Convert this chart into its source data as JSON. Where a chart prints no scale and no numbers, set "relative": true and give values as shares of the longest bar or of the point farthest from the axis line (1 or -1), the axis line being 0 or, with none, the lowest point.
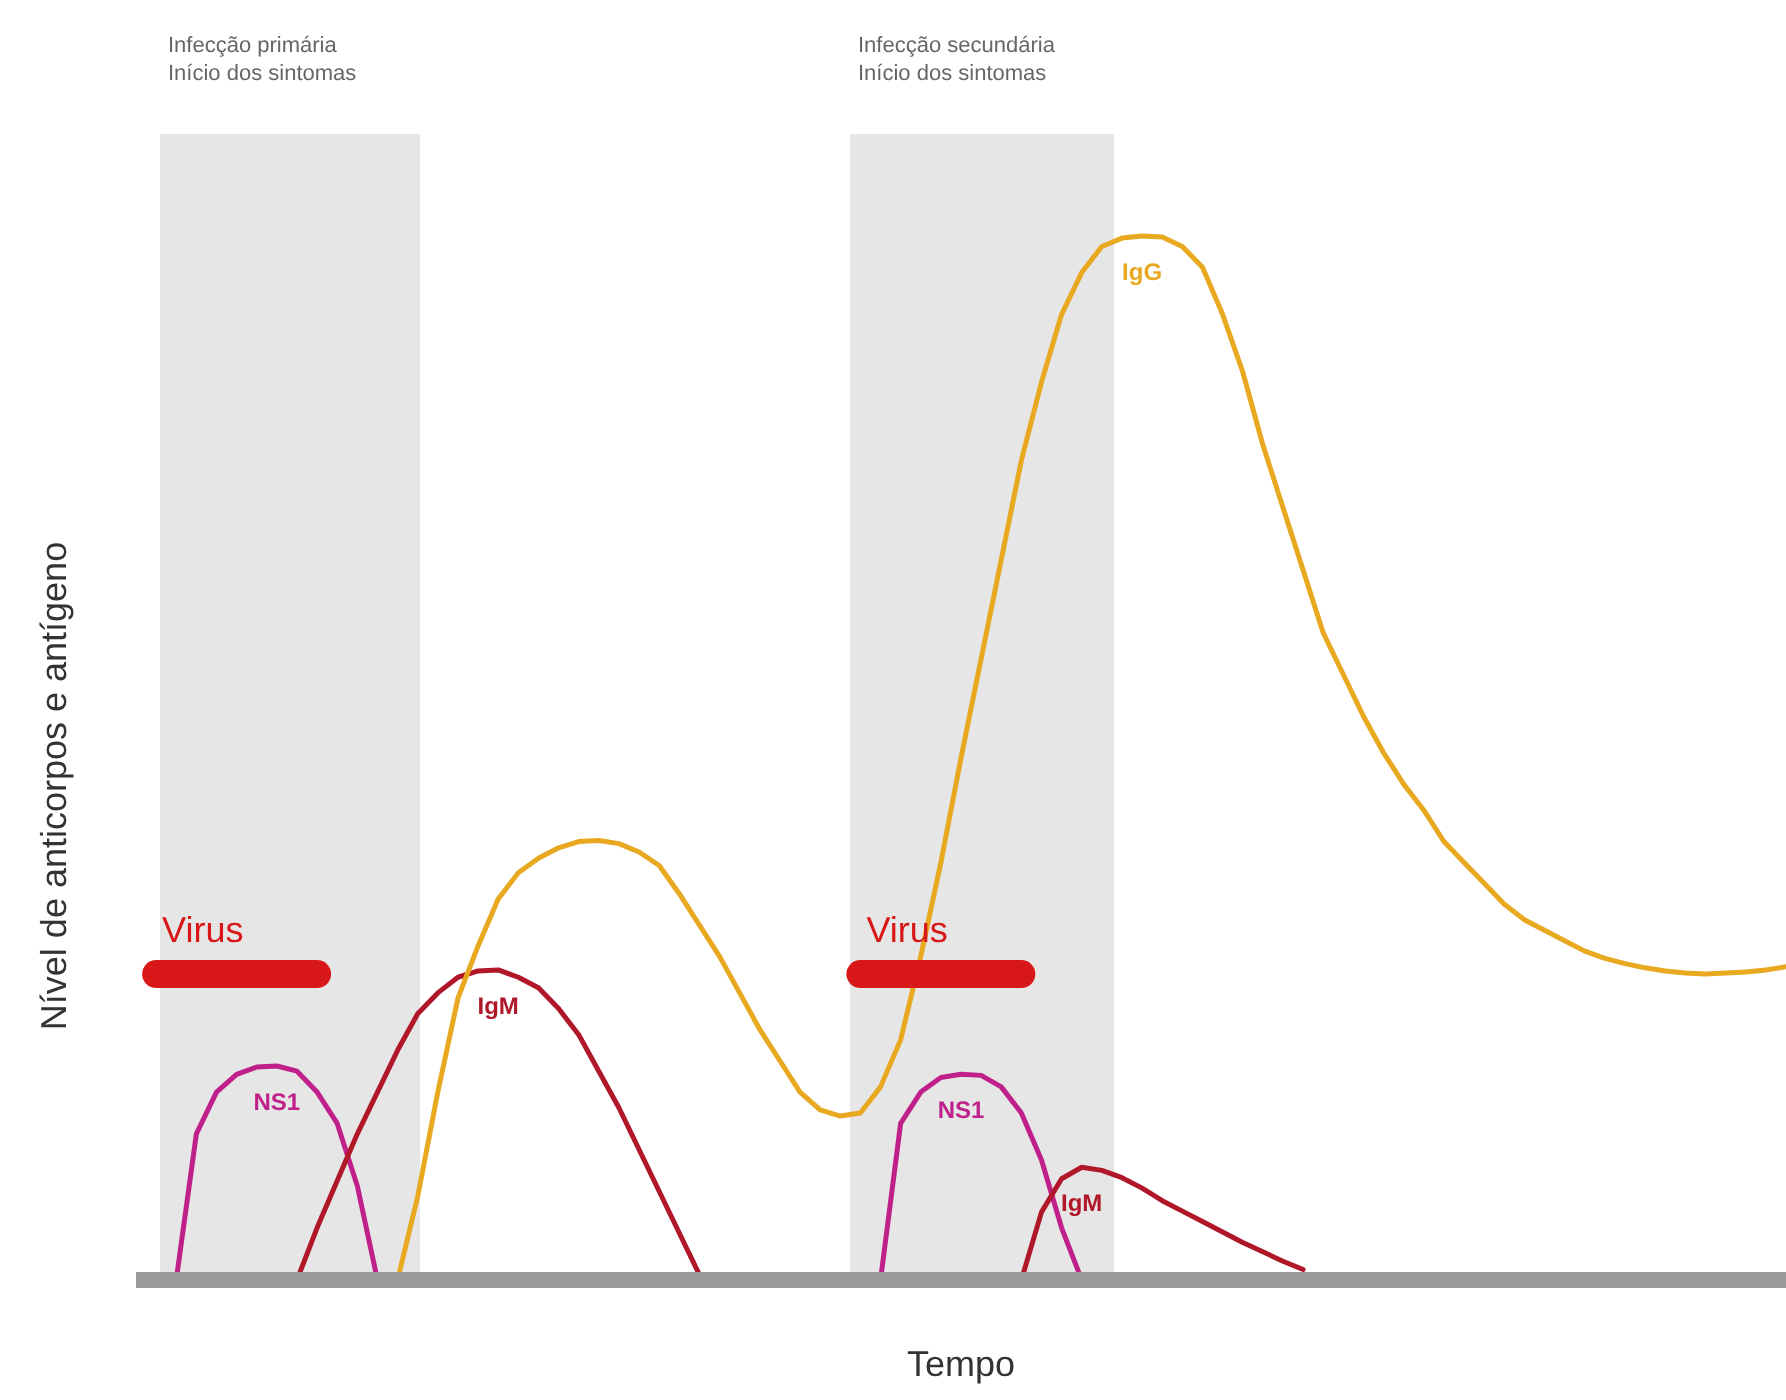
{
  "chart_data": {
    "type": "line",
    "relative": true,
    "xlabel": "Tempo",
    "ylabel": "Nível de anticorpos e antígeno",
    "legend": false,
    "grid": false,
    "marker": "none",
    "line_style": "solid",
    "annotations": [
      "Infecção primária\nInício dos sintomas",
      "Infecção secundária\nInício dos sintomas"
    ],
    "categories": [
      null,
      null,
      null,
      null,
      null,
      null,
      null,
      null,
      null,
      null,
      null,
      null,
      null,
      null,
      null,
      null,
      null,
      null,
      null,
      null,
      null,
      null,
      null,
      null,
      null,
      null,
      null,
      null,
      null,
      null,
      null,
      null,
      null,
      null,
      null,
      null,
      null,
      null,
      null,
      null,
      null,
      null,
      null,
      null,
      null,
      null,
      null,
      null,
      null,
      null,
      null,
      null,
      null,
      null,
      null,
      null,
      null,
      null,
      null,
      null,
      null,
      null,
      null,
      null,
      null,
      null,
      null,
      null,
      null,
      null,
      null,
      null,
      null,
      null,
      null,
      null,
      null,
      null,
      null,
      null,
      null,
      null,
      null
    ],
    "series": [
      {
        "name": "Virus",
        "color": "#d81818",
        "values": [
          null,
          0.293,
          0.293,
          0.293,
          0.293,
          0.293,
          0.293,
          0.293,
          0.293,
          0.293,
          null,
          null,
          null,
          null,
          null,
          null,
          null,
          null,
          null,
          null,
          null,
          null,
          null,
          null,
          null,
          null,
          null,
          null,
          null,
          null,
          null,
          null,
          null,
          null,
          null,
          null,
          null,
          null,
          null,
          null,
          null,
          null,
          null,
          null,
          null,
          null,
          null,
          null,
          null,
          null,
          null,
          null,
          null,
          null,
          null,
          null,
          null,
          null,
          null,
          null,
          null,
          null,
          null,
          null,
          null,
          null,
          null,
          null,
          null,
          null,
          null,
          null,
          null,
          null,
          null,
          null,
          null,
          null,
          null,
          null,
          null,
          null,
          null
        ]
      },
      {
        "name": "NS1",
        "color": "#c0208a",
        "values": [
          null,
          null,
          0,
          0.14,
          0.18,
          0.197,
          0.204,
          0.205,
          0.2,
          0.18,
          0.15,
          0.09,
          0,
          null,
          null,
          null,
          null,
          null,
          null,
          null,
          null,
          null,
          null,
          null,
          null,
          null,
          null,
          null,
          null,
          null,
          null,
          null,
          null,
          null,
          null,
          null,
          null,
          null,
          null,
          null,
          null,
          null,
          null,
          null,
          null,
          null,
          null,
          null,
          null,
          null,
          null,
          null,
          null,
          null,
          null,
          null,
          null,
          null,
          null,
          null,
          null,
          null,
          null,
          null,
          null,
          null,
          null,
          null,
          null,
          null,
          null,
          null,
          null,
          null,
          null,
          null,
          null,
          null,
          null,
          null,
          null,
          null,
          null
        ]
      },
      {
        "name": "IgM",
        "color": "#b0182a",
        "values": [
          null,
          null,
          null,
          null,
          null,
          null,
          null,
          null,
          0,
          0.05,
          0.095,
          0.14,
          0.18,
          0.22,
          0.255,
          0.275,
          0.29,
          0.296,
          0.297,
          0.29,
          0.28,
          0.26,
          0.235,
          0.2,
          0.165,
          0.125,
          0.085,
          0.045,
          0.005,
          null,
          null,
          null,
          null,
          null,
          null,
          null,
          null,
          null,
          null,
          null,
          null,
          null,
          null,
          null,
          null,
          null,
          null,
          null,
          null,
          null,
          null,
          null,
          null,
          null,
          null,
          null,
          null,
          null,
          null,
          null,
          null,
          null,
          null,
          null,
          null,
          null,
          null,
          null,
          null,
          null,
          null,
          null,
          null,
          null,
          null,
          null,
          null,
          null,
          null,
          null,
          null,
          null,
          null
        ]
      },
      {
        "name": "IgG",
        "color": "#e8a820",
        "values": [
          null,
          null,
          null,
          null,
          null,
          null,
          null,
          null,
          null,
          null,
          null,
          null,
          null,
          0,
          0.08,
          0.18,
          0.27,
          0.32,
          0.365,
          0.39,
          0.404,
          0.414,
          0.42,
          0.421,
          0.418,
          0.41,
          0.397,
          0.37,
          0.34,
          0.31,
          0.275,
          0.24,
          0.21,
          0.18,
          0.163,
          0.157,
          0.16,
          0.185,
          0.23,
          0.31,
          0.4,
          0.5,
          0.595,
          0.69,
          0.785,
          0.86,
          0.925,
          0.965,
          0.99,
          0.998,
          1.0,
          0.999,
          0.99,
          0.97,
          0.925,
          0.87,
          0.8,
          0.74,
          0.68,
          0.62,
          0.58,
          0.54,
          0.505,
          0.475,
          0.45,
          0.42,
          0.4,
          0.38,
          0.36,
          0.345,
          0.335,
          0.325,
          0.315,
          0.308,
          0.303,
          0.299,
          0.296,
          0.294,
          0.293,
          0.294,
          0.295,
          0.297,
          0.3
        ]
      },
      {
        "name": "Virus",
        "color": "#d81818",
        "values": [
          null,
          null,
          null,
          null,
          null,
          null,
          null,
          null,
          null,
          null,
          null,
          null,
          null,
          null,
          null,
          null,
          null,
          null,
          null,
          null,
          null,
          null,
          null,
          null,
          null,
          null,
          null,
          null,
          null,
          null,
          null,
          null,
          null,
          null,
          null,
          null,
          0.293,
          0.293,
          0.293,
          0.293,
          0.293,
          0.293,
          0.293,
          0.293,
          0.293,
          null,
          null,
          null,
          null,
          null,
          null,
          null,
          null,
          null,
          null,
          null,
          null,
          null,
          null,
          null,
          null,
          null,
          null,
          null,
          null,
          null,
          null,
          null,
          null,
          null,
          null,
          null,
          null,
          null,
          null,
          null,
          null,
          null,
          null,
          null,
          null,
          null,
          null
        ]
      },
      {
        "name": "NS1",
        "color": "#c0208a",
        "values": [
          null,
          null,
          null,
          null,
          null,
          null,
          null,
          null,
          null,
          null,
          null,
          null,
          null,
          null,
          null,
          null,
          null,
          null,
          null,
          null,
          null,
          null,
          null,
          null,
          null,
          null,
          null,
          null,
          null,
          null,
          null,
          null,
          null,
          null,
          null,
          null,
          null,
          0,
          0.15,
          0.18,
          0.194,
          0.197,
          0.196,
          0.185,
          0.16,
          0.115,
          0.05,
          0,
          null,
          null,
          null,
          null,
          null,
          null,
          null,
          null,
          null,
          null,
          null,
          null,
          null,
          null,
          null,
          null,
          null,
          null,
          null,
          null,
          null,
          null,
          null,
          null,
          null,
          null,
          null,
          null,
          null,
          null,
          null,
          null,
          null,
          null,
          null
        ]
      },
      {
        "name": "IgM",
        "color": "#b0182a",
        "values": [
          null,
          null,
          null,
          null,
          null,
          null,
          null,
          null,
          null,
          null,
          null,
          null,
          null,
          null,
          null,
          null,
          null,
          null,
          null,
          null,
          null,
          null,
          null,
          null,
          null,
          null,
          null,
          null,
          null,
          null,
          null,
          null,
          null,
          null,
          null,
          null,
          null,
          null,
          null,
          null,
          null,
          null,
          null,
          null,
          0,
          0.065,
          0.097,
          0.108,
          0.105,
          0.098,
          0.088,
          0.076,
          0.066,
          0.056,
          0.046,
          0.036,
          0.027,
          0.018,
          0.01,
          null,
          null,
          null,
          null,
          null,
          null,
          null,
          null,
          null,
          null,
          null,
          null,
          null,
          null,
          null,
          null,
          null,
          null,
          null,
          null,
          null,
          null,
          null,
          null
        ]
      }
    ]
  }
}
